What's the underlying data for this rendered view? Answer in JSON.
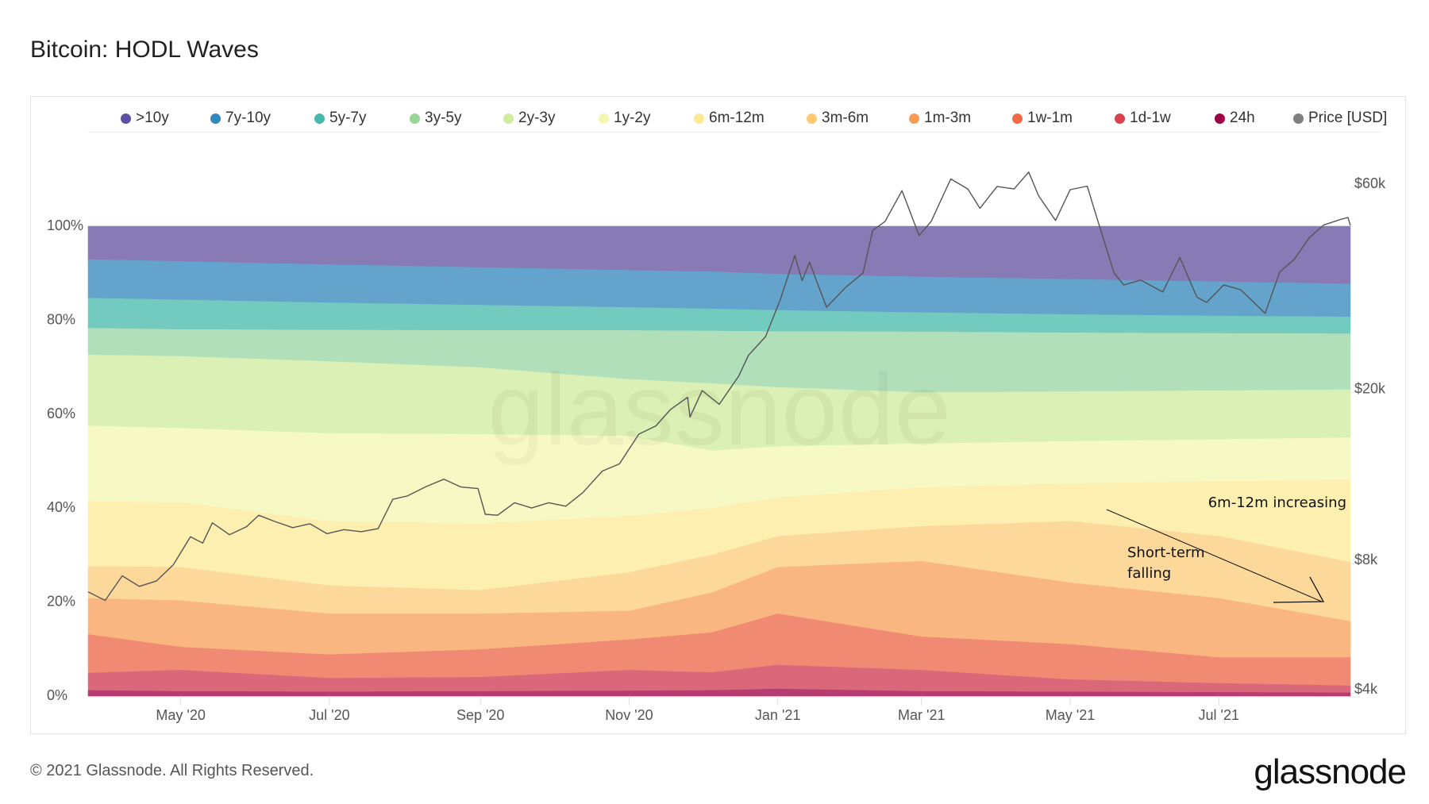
{
  "title": "Bitcoin: HODL Waves",
  "footer": {
    "copyright": "© 2021 Glassnode. All Rights Reserved.",
    "logo": "glassnode"
  },
  "watermark": "glassnode",
  "chart_data": {
    "type": "area",
    "stacked": "percent",
    "legend_position": "top",
    "grid": false,
    "x_tick_labels": [
      "May '20",
      "Jul '20",
      "Sep '20",
      "Nov '20",
      "Jan '21",
      "Mar '21",
      "May '21",
      "Jul '21"
    ],
    "x_tick_dates": [
      "2020-05-01",
      "2020-07-01",
      "2020-09-01",
      "2020-11-01",
      "2021-01-01",
      "2021-03-01",
      "2021-05-01",
      "2021-07-01"
    ],
    "xlim": [
      "2020-03-24",
      "2021-08-24"
    ],
    "y_left": {
      "ticks": [
        "0%",
        "20%",
        "40%",
        "60%",
        "80%",
        "100%"
      ],
      "tick_values": [
        0,
        20,
        40,
        60,
        80,
        100
      ],
      "ylim": [
        0,
        100
      ]
    },
    "y_right": {
      "scale": "log",
      "ticks": [
        "$4k",
        "$8k",
        "$20k",
        "$60k"
      ],
      "tick_values": [
        4000,
        8000,
        20000,
        60000
      ]
    },
    "dates": [
      "2020-03-24",
      "2020-05-01",
      "2020-07-01",
      "2020-09-01",
      "2020-11-01",
      "2020-12-05",
      "2021-01-01",
      "2021-03-01",
      "2021-05-01",
      "2021-07-01",
      "2021-08-24"
    ],
    "series": [
      {
        "name": ">10y",
        "color": "#5e4fa2",
        "fill": "#877ab5",
        "values": [
          7.1,
          7.5,
          8.2,
          8.8,
          9.4,
          9.7,
          10.2,
          10.8,
          11.3,
          11.8,
          12.3
        ]
      },
      {
        "name": "7y-10y",
        "color": "#3288bd",
        "fill": "#63a3cc",
        "values": [
          8.2,
          8.2,
          8.1,
          8.0,
          7.9,
          7.9,
          7.7,
          7.6,
          7.5,
          7.3,
          7.0
        ]
      },
      {
        "name": "5y-7y",
        "color": "#48b9aa",
        "fill": "#73cabe",
        "values": [
          6.4,
          6.3,
          5.8,
          5.4,
          4.9,
          4.7,
          4.5,
          4.1,
          3.9,
          3.7,
          3.6
        ]
      },
      {
        "name": "3y-5y",
        "color": "#99d594",
        "fill": "#b1dfba",
        "values": [
          5.7,
          5.7,
          6.7,
          7.9,
          10.4,
          11.2,
          11.9,
          12.9,
          12.5,
          12.2,
          11.9
        ]
      },
      {
        "name": "2y-3y",
        "color": "#d0ec9c",
        "fill": "#dbf0b4",
        "values": [
          15.1,
          15.3,
          15.3,
          14.2,
          12.1,
          14.3,
          12.6,
          10.9,
          10.6,
          10.4,
          10.2
        ]
      },
      {
        "name": "1y-2y",
        "color": "#f3f8b0",
        "fill": "#f7f9c5",
        "values": [
          16.1,
          15.8,
          18.7,
          19.0,
          17.0,
          12.2,
          10.9,
          9.3,
          9.0,
          8.9,
          9.0
        ]
      },
      {
        "name": "6m-12m",
        "color": "#fde992",
        "fill": "#fcefaf",
        "values": [
          13.8,
          13.8,
          13.7,
          14.2,
          12.0,
          10.0,
          8.2,
          8.3,
          8.0,
          11.7,
          17.5
        ]
      },
      {
        "name": "3m-6m",
        "color": "#fdca71",
        "fill": "#fcd99a",
        "values": [
          6.8,
          7.1,
          6.0,
          5.0,
          8.2,
          8.0,
          6.6,
          7.4,
          13.1,
          13.2,
          12.6
        ]
      },
      {
        "name": "1m-3m",
        "color": "#fb9c56",
        "fill": "#f9b680",
        "values": [
          7.7,
          9.9,
          8.7,
          7.6,
          6.1,
          8.5,
          9.9,
          16.1,
          13.1,
          12.6,
          7.7
        ]
      },
      {
        "name": "1w-1m",
        "color": "#f06a45",
        "fill": "#f08a72",
        "values": [
          8.2,
          4.9,
          5.0,
          5.9,
          6.5,
          8.5,
          10.9,
          7.1,
          7.5,
          5.5,
          6.0
        ]
      },
      {
        "name": "1d-1w",
        "color": "#d9414f",
        "fill": "#d9687b",
        "values": [
          3.7,
          4.5,
          2.9,
          3.0,
          4.4,
          3.8,
          5.1,
          4.5,
          2.6,
          1.9,
          1.5
        ]
      },
      {
        "name": "24h",
        "color": "#9e0142",
        "fill": "#b63d70",
        "values": [
          1.2,
          1.0,
          0.9,
          1.0,
          1.1,
          1.2,
          1.5,
          1.0,
          0.9,
          0.8,
          0.7
        ]
      }
    ],
    "price": {
      "name": "Price [USD]",
      "color": "#7f7f7f",
      "line": "#555555",
      "points": [
        [
          "2020-03-24",
          6700
        ],
        [
          "2020-03-31",
          6400
        ],
        [
          "2020-04-07",
          7300
        ],
        [
          "2020-04-14",
          6900
        ],
        [
          "2020-04-21",
          7100
        ],
        [
          "2020-04-28",
          7750
        ],
        [
          "2020-05-05",
          9000
        ],
        [
          "2020-05-10",
          8700
        ],
        [
          "2020-05-14",
          9700
        ],
        [
          "2020-05-21",
          9100
        ],
        [
          "2020-05-28",
          9500
        ],
        [
          "2020-06-02",
          10100
        ],
        [
          "2020-06-09",
          9750
        ],
        [
          "2020-06-16",
          9450
        ],
        [
          "2020-06-23",
          9650
        ],
        [
          "2020-06-30",
          9150
        ],
        [
          "2020-07-07",
          9350
        ],
        [
          "2020-07-14",
          9250
        ],
        [
          "2020-07-21",
          9400
        ],
        [
          "2020-07-27",
          11000
        ],
        [
          "2020-08-02",
          11200
        ],
        [
          "2020-08-10",
          11800
        ],
        [
          "2020-08-17",
          12250
        ],
        [
          "2020-08-24",
          11750
        ],
        [
          "2020-08-31",
          11650
        ],
        [
          "2020-09-03",
          10150
        ],
        [
          "2020-09-08",
          10100
        ],
        [
          "2020-09-15",
          10800
        ],
        [
          "2020-09-22",
          10500
        ],
        [
          "2020-09-29",
          10800
        ],
        [
          "2020-10-06",
          10600
        ],
        [
          "2020-10-13",
          11400
        ],
        [
          "2020-10-21",
          12800
        ],
        [
          "2020-10-28",
          13300
        ],
        [
          "2020-11-05",
          15600
        ],
        [
          "2020-11-12",
          16300
        ],
        [
          "2020-11-18",
          17800
        ],
        [
          "2020-11-25",
          19000
        ],
        [
          "2020-11-26",
          17100
        ],
        [
          "2020-12-01",
          19700
        ],
        [
          "2020-12-08",
          18300
        ],
        [
          "2020-12-16",
          21300
        ],
        [
          "2020-12-20",
          23800
        ],
        [
          "2020-12-27",
          26300
        ],
        [
          "2021-01-02",
          32000
        ],
        [
          "2021-01-08",
          40600
        ],
        [
          "2021-01-11",
          35500
        ],
        [
          "2021-01-14",
          39200
        ],
        [
          "2021-01-21",
          30800
        ],
        [
          "2021-01-29",
          34300
        ],
        [
          "2021-02-05",
          37000
        ],
        [
          "2021-02-09",
          46500
        ],
        [
          "2021-02-14",
          48700
        ],
        [
          "2021-02-21",
          57500
        ],
        [
          "2021-02-28",
          45200
        ],
        [
          "2021-03-05",
          48800
        ],
        [
          "2021-03-13",
          61200
        ],
        [
          "2021-03-20",
          58000
        ],
        [
          "2021-03-25",
          52300
        ],
        [
          "2021-04-01",
          58800
        ],
        [
          "2021-04-08",
          58000
        ],
        [
          "2021-04-14",
          63500
        ],
        [
          "2021-04-18",
          56000
        ],
        [
          "2021-04-25",
          49000
        ],
        [
          "2021-05-01",
          57800
        ],
        [
          "2021-05-08",
          58900
        ],
        [
          "2021-05-12",
          49600
        ],
        [
          "2021-05-19",
          37000
        ],
        [
          "2021-05-23",
          34700
        ],
        [
          "2021-05-30",
          35600
        ],
        [
          "2021-06-08",
          33400
        ],
        [
          "2021-06-15",
          40200
        ],
        [
          "2021-06-22",
          32500
        ],
        [
          "2021-06-26",
          31600
        ],
        [
          "2021-07-03",
          34700
        ],
        [
          "2021-07-10",
          33800
        ],
        [
          "2021-07-20",
          29800
        ],
        [
          "2021-07-26",
          37200
        ],
        [
          "2021-08-01",
          39800
        ],
        [
          "2021-08-07",
          44600
        ],
        [
          "2021-08-13",
          47800
        ],
        [
          "2021-08-20",
          49300
        ],
        [
          "2021-08-23",
          49800
        ],
        [
          "2021-08-24",
          47700
        ]
      ]
    },
    "annotations": [
      {
        "text": "6m-12m increasing"
      },
      {
        "text": "Short-term falling",
        "lines": [
          "Short-term",
          "falling"
        ]
      }
    ]
  }
}
